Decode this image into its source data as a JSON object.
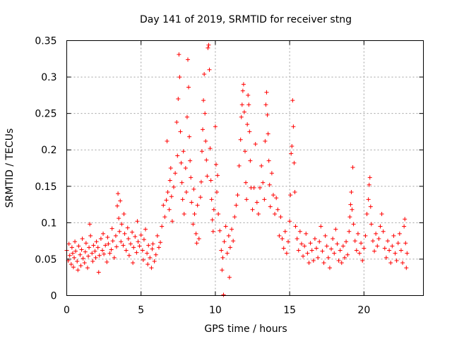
{
  "chart_data": {
    "type": "scatter",
    "title": "Day 141 of 2019, SRMTID for receiver stng",
    "xlabel": "GPS time / hours",
    "ylabel": "SRMTID / TECUs",
    "xlim": [
      0,
      24
    ],
    "ylim": [
      0,
      0.35
    ],
    "x_ticks": [
      0,
      5,
      10,
      15,
      20
    ],
    "x_tick_labels": [
      "0",
      "5",
      "10",
      "15",
      "20"
    ],
    "y_ticks": [
      0,
      0.05,
      0.1,
      0.15,
      0.2,
      0.25,
      0.3,
      0.35
    ],
    "y_tick_labels": [
      "0",
      "0.05",
      "0.1",
      "0.15",
      "0.2",
      "0.25",
      "0.3",
      "0.35"
    ],
    "grid": true,
    "marker": "+",
    "color": "#ff0000",
    "series": [
      {
        "name": "SRMTID",
        "points": [
          [
            0.0,
            0.062
          ],
          [
            0.1,
            0.048
          ],
          [
            0.15,
            0.071
          ],
          [
            0.2,
            0.055
          ],
          [
            0.3,
            0.043
          ],
          [
            0.35,
            0.066
          ],
          [
            0.4,
            0.058
          ],
          [
            0.45,
            0.039
          ],
          [
            0.5,
            0.052
          ],
          [
            0.55,
            0.074
          ],
          [
            0.6,
            0.061
          ],
          [
            0.7,
            0.047
          ],
          [
            0.75,
            0.035
          ],
          [
            0.8,
            0.068
          ],
          [
            0.9,
            0.056
          ],
          [
            0.95,
            0.041
          ],
          [
            1.0,
            0.063
          ],
          [
            1.05,
            0.078
          ],
          [
            1.1,
            0.051
          ],
          [
            1.2,
            0.045
          ],
          [
            1.25,
            0.06
          ],
          [
            1.3,
            0.072
          ],
          [
            1.4,
            0.038
          ],
          [
            1.45,
            0.054
          ],
          [
            1.5,
            0.066
          ],
          [
            1.55,
            0.098
          ],
          [
            1.6,
            0.082
          ],
          [
            1.7,
            0.058
          ],
          [
            1.75,
            0.047
          ],
          [
            1.8,
            0.069
          ],
          [
            1.9,
            0.061
          ],
          [
            1.95,
            0.052
          ],
          [
            2.0,
            0.074
          ],
          [
            2.1,
            0.066
          ],
          [
            2.15,
            0.032
          ],
          [
            2.2,
            0.055
          ],
          [
            2.3,
            0.078
          ],
          [
            2.4,
            0.062
          ],
          [
            2.45,
            0.085
          ],
          [
            2.5,
            0.057
          ],
          [
            2.6,
            0.069
          ],
          [
            2.7,
            0.046
          ],
          [
            2.75,
            0.08
          ],
          [
            2.8,
            0.071
          ],
          [
            2.9,
            0.058
          ],
          [
            3.0,
            0.063
          ],
          [
            3.05,
            0.092
          ],
          [
            3.1,
            0.075
          ],
          [
            3.2,
            0.052
          ],
          [
            3.3,
            0.082
          ],
          [
            3.35,
            0.067
          ],
          [
            3.4,
            0.123
          ],
          [
            3.45,
            0.14
          ],
          [
            3.5,
            0.106
          ],
          [
            3.55,
            0.088
          ],
          [
            3.6,
            0.13
          ],
          [
            3.65,
            0.074
          ],
          [
            3.7,
            0.098
          ],
          [
            3.8,
            0.069
          ],
          [
            3.85,
            0.112
          ],
          [
            3.9,
            0.085
          ],
          [
            4.0,
            0.062
          ],
          [
            4.1,
            0.093
          ],
          [
            4.15,
            0.078
          ],
          [
            4.2,
            0.055
          ],
          [
            4.3,
            0.071
          ],
          [
            4.4,
            0.087
          ],
          [
            4.45,
            0.045
          ],
          [
            4.5,
            0.066
          ],
          [
            4.6,
            0.081
          ],
          [
            4.7,
            0.059
          ],
          [
            4.75,
            0.102
          ],
          [
            4.8,
            0.074
          ],
          [
            4.9,
            0.068
          ],
          [
            5.0,
            0.083
          ],
          [
            5.1,
            0.062
          ],
          [
            5.15,
            0.049
          ],
          [
            5.2,
            0.077
          ],
          [
            5.3,
            0.091
          ],
          [
            5.4,
            0.058
          ],
          [
            5.45,
            0.043
          ],
          [
            5.5,
            0.069
          ],
          [
            5.6,
            0.052
          ],
          [
            5.7,
            0.038
          ],
          [
            5.75,
            0.064
          ],
          [
            5.8,
            0.071
          ],
          [
            5.9,
            0.047
          ],
          [
            6.0,
            0.056
          ],
          [
            6.1,
            0.082
          ],
          [
            6.2,
            0.066
          ],
          [
            6.3,
            0.073
          ],
          [
            6.4,
            0.095
          ],
          [
            6.5,
            0.124
          ],
          [
            6.6,
            0.108
          ],
          [
            6.7,
            0.131
          ],
          [
            6.75,
            0.212
          ],
          [
            6.8,
            0.142
          ],
          [
            6.9,
            0.118
          ],
          [
            6.95,
            0.158
          ],
          [
            7.0,
            0.175
          ],
          [
            7.05,
            0.136
          ],
          [
            7.1,
            0.102
          ],
          [
            7.2,
            0.149
          ],
          [
            7.3,
            0.168
          ],
          [
            7.4,
            0.238
          ],
          [
            7.45,
            0.192
          ],
          [
            7.5,
            0.27
          ],
          [
            7.55,
            0.331
          ],
          [
            7.6,
            0.3
          ],
          [
            7.65,
            0.225
          ],
          [
            7.7,
            0.182
          ],
          [
            7.75,
            0.155
          ],
          [
            7.8,
            0.132
          ],
          [
            7.85,
            0.198
          ],
          [
            7.9,
            0.112
          ],
          [
            8.0,
            0.175
          ],
          [
            8.05,
            0.142
          ],
          [
            8.1,
            0.245
          ],
          [
            8.15,
            0.324
          ],
          [
            8.2,
            0.286
          ],
          [
            8.25,
            0.218
          ],
          [
            8.3,
            0.185
          ],
          [
            8.35,
            0.162
          ],
          [
            8.4,
            0.128
          ],
          [
            8.5,
            0.098
          ],
          [
            8.55,
            0.146
          ],
          [
            8.6,
            0.112
          ],
          [
            8.7,
            0.085
          ],
          [
            8.75,
            0.072
          ],
          [
            8.8,
            0.124
          ],
          [
            8.9,
            0.078
          ],
          [
            9.0,
            0.135
          ],
          [
            9.05,
            0.156
          ],
          [
            9.1,
            0.198
          ],
          [
            9.15,
            0.228
          ],
          [
            9.2,
            0.268
          ],
          [
            9.25,
            0.304
          ],
          [
            9.3,
            0.25
          ],
          [
            9.35,
            0.212
          ],
          [
            9.4,
            0.186
          ],
          [
            9.45,
            0.164
          ],
          [
            9.5,
            0.34
          ],
          [
            9.55,
            0.344
          ],
          [
            9.6,
            0.31
          ],
          [
            9.65,
            0.202
          ],
          [
            9.7,
            0.158
          ],
          [
            9.75,
            0.132
          ],
          [
            9.8,
            0.104
          ],
          [
            9.85,
            0.088
          ],
          [
            9.9,
            0.118
          ],
          [
            10.0,
            0.232
          ],
          [
            10.05,
            0.18
          ],
          [
            10.1,
            0.142
          ],
          [
            10.15,
            0.165
          ],
          [
            10.2,
            0.112
          ],
          [
            10.3,
            0.089
          ],
          [
            10.4,
            0.062
          ],
          [
            10.45,
            0.035
          ],
          [
            10.5,
            0.052
          ],
          [
            10.55,
            0.001
          ],
          [
            10.6,
            0.074
          ],
          [
            10.7,
            0.095
          ],
          [
            10.8,
            0.058
          ],
          [
            10.9,
            0.082
          ],
          [
            10.95,
            0.025
          ],
          [
            11.0,
            0.066
          ],
          [
            11.1,
            0.091
          ],
          [
            11.2,
            0.075
          ],
          [
            11.3,
            0.108
          ],
          [
            11.4,
            0.124
          ],
          [
            11.5,
            0.138
          ],
          [
            11.6,
            0.178
          ],
          [
            11.7,
            0.214
          ],
          [
            11.75,
            0.245
          ],
          [
            11.8,
            0.262
          ],
          [
            11.85,
            0.281
          ],
          [
            11.9,
            0.29
          ],
          [
            11.95,
            0.252
          ],
          [
            12.0,
            0.198
          ],
          [
            12.05,
            0.155
          ],
          [
            12.1,
            0.132
          ],
          [
            12.15,
            0.235
          ],
          [
            12.2,
            0.275
          ],
          [
            12.25,
            0.262
          ],
          [
            12.3,
            0.225
          ],
          [
            12.35,
            0.185
          ],
          [
            12.4,
            0.148
          ],
          [
            12.5,
            0.118
          ],
          [
            12.6,
            0.148
          ],
          [
            12.7,
            0.208
          ],
          [
            12.8,
            0.128
          ],
          [
            12.9,
            0.112
          ],
          [
            13.0,
            0.148
          ],
          [
            13.1,
            0.178
          ],
          [
            13.2,
            0.155
          ],
          [
            13.3,
            0.132
          ],
          [
            13.35,
            0.212
          ],
          [
            13.4,
            0.262
          ],
          [
            13.45,
            0.279
          ],
          [
            13.5,
            0.248
          ],
          [
            13.55,
            0.222
          ],
          [
            13.6,
            0.185
          ],
          [
            13.65,
            0.152
          ],
          [
            13.7,
            0.122
          ],
          [
            13.8,
            0.168
          ],
          [
            13.9,
            0.138
          ],
          [
            14.0,
            0.112
          ],
          [
            14.1,
            0.134
          ],
          [
            14.2,
            0.118
          ],
          [
            14.3,
            0.082
          ],
          [
            14.4,
            0.108
          ],
          [
            14.5,
            0.078
          ],
          [
            14.6,
            0.065
          ],
          [
            14.7,
            0.088
          ],
          [
            14.8,
            0.058
          ],
          [
            14.9,
            0.074
          ],
          [
            15.0,
            0.102
          ],
          [
            15.05,
            0.138
          ],
          [
            15.1,
            0.195
          ],
          [
            15.15,
            0.205
          ],
          [
            15.2,
            0.268
          ],
          [
            15.25,
            0.232
          ],
          [
            15.3,
            0.182
          ],
          [
            15.35,
            0.142
          ],
          [
            15.4,
            0.095
          ],
          [
            15.5,
            0.078
          ],
          [
            15.6,
            0.062
          ],
          [
            15.7,
            0.088
          ],
          [
            15.8,
            0.071
          ],
          [
            15.9,
            0.054
          ],
          [
            16.0,
            0.068
          ],
          [
            16.1,
            0.085
          ],
          [
            16.2,
            0.058
          ],
          [
            16.3,
            0.045
          ],
          [
            16.4,
            0.072
          ],
          [
            16.5,
            0.062
          ],
          [
            16.6,
            0.048
          ],
          [
            16.7,
            0.078
          ],
          [
            16.8,
            0.065
          ],
          [
            16.9,
            0.052
          ],
          [
            17.0,
            0.074
          ],
          [
            17.1,
            0.095
          ],
          [
            17.2,
            0.061
          ],
          [
            17.3,
            0.045
          ],
          [
            17.4,
            0.082
          ],
          [
            17.5,
            0.068
          ],
          [
            17.6,
            0.052
          ],
          [
            17.7,
            0.038
          ],
          [
            17.8,
            0.064
          ],
          [
            17.9,
            0.078
          ],
          [
            18.0,
            0.058
          ],
          [
            18.1,
            0.091
          ],
          [
            18.2,
            0.071
          ],
          [
            18.3,
            0.048
          ],
          [
            18.4,
            0.062
          ],
          [
            18.5,
            0.045
          ],
          [
            18.6,
            0.068
          ],
          [
            18.7,
            0.052
          ],
          [
            18.8,
            0.074
          ],
          [
            18.9,
            0.056
          ],
          [
            19.0,
            0.088
          ],
          [
            19.05,
            0.108
          ],
          [
            19.1,
            0.125
          ],
          [
            19.15,
            0.142
          ],
          [
            19.2,
            0.118
          ],
          [
            19.25,
            0.176
          ],
          [
            19.3,
            0.098
          ],
          [
            19.4,
            0.075
          ],
          [
            19.5,
            0.062
          ],
          [
            19.6,
            0.085
          ],
          [
            19.7,
            0.058
          ],
          [
            19.8,
            0.072
          ],
          [
            19.9,
            0.048
          ],
          [
            20.0,
            0.065
          ],
          [
            20.1,
            0.082
          ],
          [
            20.2,
            0.112
          ],
          [
            20.3,
            0.132
          ],
          [
            20.35,
            0.152
          ],
          [
            20.4,
            0.162
          ],
          [
            20.45,
            0.122
          ],
          [
            20.5,
            0.098
          ],
          [
            20.6,
            0.075
          ],
          [
            20.7,
            0.061
          ],
          [
            20.8,
            0.085
          ],
          [
            20.9,
            0.068
          ],
          [
            21.0,
            0.078
          ],
          [
            21.1,
            0.095
          ],
          [
            21.2,
            0.112
          ],
          [
            21.3,
            0.088
          ],
          [
            21.4,
            0.065
          ],
          [
            21.5,
            0.052
          ],
          [
            21.6,
            0.075
          ],
          [
            21.7,
            0.062
          ],
          [
            21.8,
            0.045
          ],
          [
            21.9,
            0.068
          ],
          [
            22.0,
            0.082
          ],
          [
            22.1,
            0.058
          ],
          [
            22.2,
            0.048
          ],
          [
            22.3,
            0.072
          ],
          [
            22.4,
            0.085
          ],
          [
            22.5,
            0.062
          ],
          [
            22.6,
            0.045
          ],
          [
            22.7,
            0.095
          ],
          [
            22.75,
            0.105
          ],
          [
            22.8,
            0.072
          ],
          [
            22.85,
            0.038
          ],
          [
            22.9,
            0.058
          ]
        ]
      }
    ]
  }
}
